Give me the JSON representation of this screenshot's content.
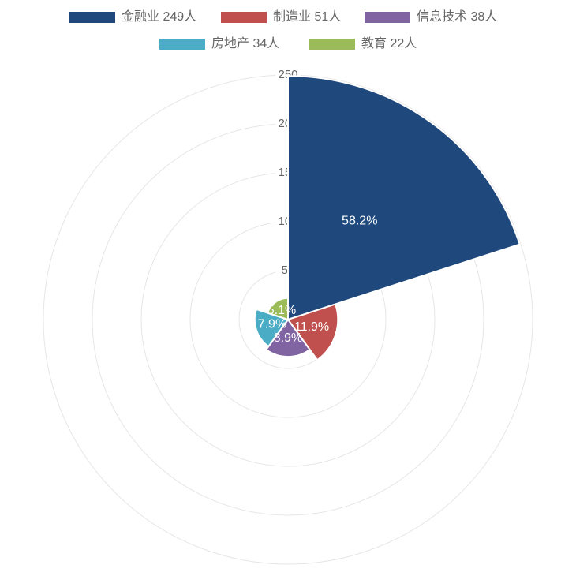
{
  "chart_data": {
    "type": "polarArea",
    "categories": [
      "金融业 249人",
      "制造业 51人",
      "信息技术 38人",
      "房地产 34人",
      "教育 22人"
    ],
    "values": [
      249,
      51,
      38,
      34,
      22
    ],
    "value_labels": [
      "58.2%",
      "11.9%",
      "8.9%",
      "7.9%",
      "5.1%"
    ],
    "colors": [
      "#1f497d",
      "#c0504d",
      "#8064a2",
      "#4bacc6",
      "#9bbb59"
    ],
    "rlim": [
      0,
      250
    ],
    "rticks": [
      50,
      100,
      150,
      200,
      250
    ],
    "grid": true,
    "legend": "top"
  }
}
